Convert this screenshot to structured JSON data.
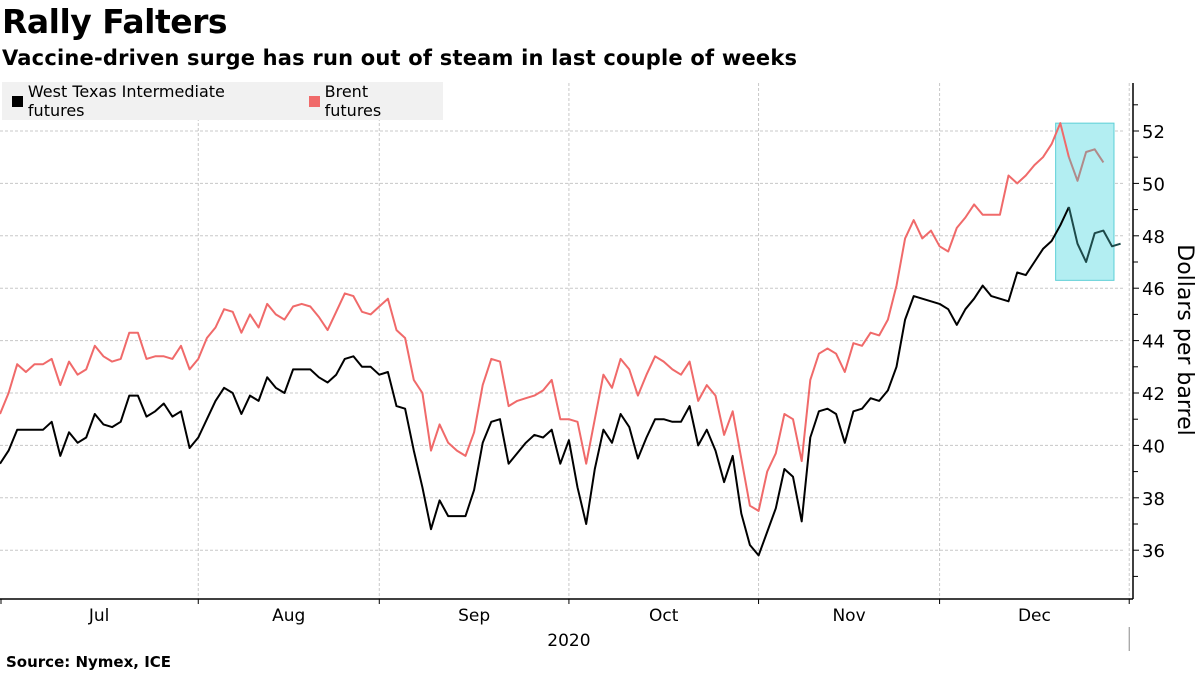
{
  "title": "Rally Falters",
  "subtitle": "Vaccine-driven surge has run out of steam in last couple of weeks",
  "source": "Source: Nymex, ICE",
  "legend": [
    {
      "label": "West Texas Intermediate futures",
      "color": "#000000"
    },
    {
      "label": "Brent futures",
      "color": "#f06a6a"
    }
  ],
  "highlight_color": "#b3eef2",
  "chart_data": {
    "type": "line",
    "title": "Rally Falters",
    "subtitle": "Vaccine-driven surge has run out of steam in last couple of weeks",
    "xlabel": "2020",
    "ylabel": "Dollars per barrel",
    "ylim": [
      34.2,
      53.8
    ],
    "yticks": [
      36,
      38,
      40,
      42,
      44,
      46,
      48,
      50,
      52
    ],
    "ytick_labels": [
      "36",
      "38",
      "40",
      "42",
      "44",
      "46",
      "48",
      "50",
      "52"
    ],
    "xlim": [
      0,
      131
    ],
    "month_ticks": [
      {
        "label": "Jul",
        "start": 0,
        "end": 23
      },
      {
        "label": "Aug",
        "start": 23,
        "end": 44
      },
      {
        "label": "Sep",
        "start": 44,
        "end": 66
      },
      {
        "label": "Oct",
        "start": 66,
        "end": 88
      },
      {
        "label": "Nov",
        "start": 88,
        "end": 109
      },
      {
        "label": "Dec",
        "start": 109,
        "end": 131
      }
    ],
    "year_label": "2020",
    "grid": true,
    "legend_position": "top-left",
    "highlight_range": {
      "x": [
        122,
        129
      ],
      "y": [
        46.3,
        52.3
      ]
    },
    "series": [
      {
        "name": "West Texas Intermediate futures",
        "color": "#000000",
        "highlight_color": "#1d4a4a",
        "values": [
          39.3,
          39.8,
          40.6,
          40.6,
          40.6,
          40.6,
          40.9,
          39.6,
          40.5,
          40.1,
          40.3,
          41.2,
          40.8,
          40.7,
          40.9,
          41.9,
          41.9,
          41.1,
          41.3,
          41.6,
          41.1,
          41.3,
          39.9,
          40.3,
          41.0,
          41.7,
          42.2,
          42.0,
          41.2,
          41.9,
          41.7,
          42.6,
          42.2,
          42.0,
          42.9,
          42.9,
          42.9,
          42.6,
          42.4,
          42.7,
          43.3,
          43.4,
          43.0,
          43.0,
          42.7,
          42.8,
          41.5,
          41.4,
          39.8,
          38.4,
          36.8,
          37.9,
          37.3,
          37.3,
          37.3,
          38.3,
          40.1,
          40.9,
          41.0,
          39.3,
          39.7,
          40.1,
          40.4,
          40.3,
          40.6,
          39.3,
          40.2,
          38.4,
          37.0,
          39.1,
          40.6,
          40.1,
          41.2,
          40.7,
          39.5,
          40.3,
          41.0,
          41.0,
          40.9,
          40.9,
          41.5,
          40.0,
          40.6,
          39.8,
          38.6,
          39.6,
          37.4,
          36.2,
          35.8,
          36.7,
          37.6,
          39.1,
          38.8,
          37.1,
          40.3,
          41.3,
          41.4,
          41.2,
          40.1,
          41.3,
          41.4,
          41.8,
          41.7,
          42.1,
          43.0,
          44.8,
          45.7,
          45.6,
          45.5,
          45.4,
          45.2,
          44.6,
          45.2,
          45.6,
          46.1,
          45.7,
          45.6,
          45.5,
          46.6,
          46.5,
          47.0,
          47.5,
          47.8,
          48.4,
          49.1,
          47.7,
          47.0,
          48.1,
          48.2,
          47.6,
          47.7
        ],
        "highlight_from_index": 124
      },
      {
        "name": "Brent futures",
        "color": "#f06a6a",
        "highlight_color": "#b08a8a",
        "values": [
          41.2,
          42.0,
          43.1,
          42.8,
          43.1,
          43.1,
          43.3,
          42.3,
          43.2,
          42.7,
          42.9,
          43.8,
          43.4,
          43.2,
          43.3,
          44.3,
          44.3,
          43.3,
          43.4,
          43.4,
          43.3,
          43.8,
          42.9,
          43.3,
          44.1,
          44.5,
          45.2,
          45.1,
          44.3,
          45.0,
          44.5,
          45.4,
          45.0,
          44.8,
          45.3,
          45.4,
          45.3,
          44.9,
          44.4,
          45.1,
          45.8,
          45.7,
          45.1,
          45.0,
          45.3,
          45.6,
          44.4,
          44.1,
          42.5,
          42.0,
          39.8,
          40.8,
          40.1,
          39.8,
          39.6,
          40.5,
          42.3,
          43.3,
          43.2,
          41.5,
          41.7,
          41.8,
          41.9,
          42.1,
          42.5,
          41.0,
          41.0,
          40.9,
          39.3,
          41.0,
          42.7,
          42.2,
          43.3,
          42.9,
          41.9,
          42.7,
          43.4,
          43.2,
          42.9,
          42.7,
          43.2,
          41.7,
          42.3,
          41.9,
          40.4,
          41.3,
          39.5,
          37.7,
          37.5,
          39.0,
          39.7,
          41.2,
          41.0,
          39.4,
          42.5,
          43.5,
          43.7,
          43.5,
          42.8,
          43.9,
          43.8,
          44.3,
          44.2,
          44.8,
          46.1,
          47.9,
          48.6,
          47.9,
          48.2,
          47.6,
          47.4,
          48.3,
          48.7,
          49.2,
          48.8,
          48.8,
          48.8,
          50.3,
          50.0,
          50.3,
          50.7,
          51.0,
          51.5,
          52.3,
          51.0,
          50.1,
          51.2,
          51.3,
          50.8
        ],
        "highlight_from_index": 124
      }
    ]
  }
}
